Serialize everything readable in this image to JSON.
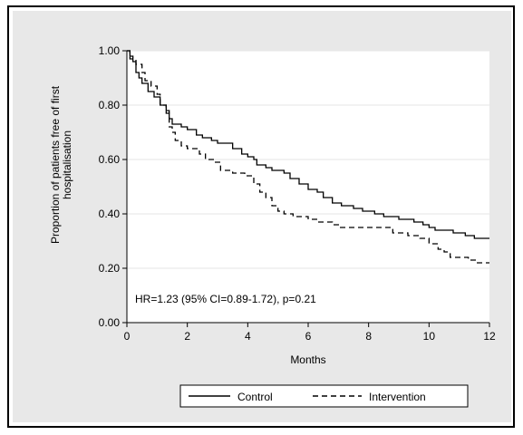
{
  "chart_data": {
    "type": "line",
    "title": "",
    "xlabel": "Months",
    "ylabel_line1": "Proportion of patients free of first",
    "ylabel_line2": "hospitalisation",
    "xlim": [
      0,
      12
    ],
    "ylim": [
      0,
      1
    ],
    "xticks": [
      "0",
      "2",
      "4",
      "6",
      "8",
      "10",
      "12"
    ],
    "yticks": [
      "0.00",
      "0.20",
      "0.40",
      "0.60",
      "0.80",
      "1.00"
    ],
    "grid": true,
    "legend_position": "bottom",
    "annotation": "HR=1.23 (95% CI=0.89-1.72), p=0.21",
    "series": [
      {
        "name": "Control",
        "style": "solid",
        "points": [
          [
            0,
            1.0
          ],
          [
            0.1,
            0.98
          ],
          [
            0.2,
            0.96
          ],
          [
            0.3,
            0.92
          ],
          [
            0.4,
            0.9
          ],
          [
            0.5,
            0.88
          ],
          [
            0.7,
            0.85
          ],
          [
            0.9,
            0.83
          ],
          [
            1.1,
            0.8
          ],
          [
            1.3,
            0.78
          ],
          [
            1.4,
            0.75
          ],
          [
            1.5,
            0.73
          ],
          [
            1.8,
            0.72
          ],
          [
            2.0,
            0.71
          ],
          [
            2.3,
            0.69
          ],
          [
            2.5,
            0.68
          ],
          [
            2.8,
            0.67
          ],
          [
            3.0,
            0.66
          ],
          [
            3.5,
            0.64
          ],
          [
            3.8,
            0.62
          ],
          [
            4.0,
            0.61
          ],
          [
            4.2,
            0.6
          ],
          [
            4.3,
            0.58
          ],
          [
            4.6,
            0.57
          ],
          [
            4.8,
            0.56
          ],
          [
            5.0,
            0.56
          ],
          [
            5.2,
            0.55
          ],
          [
            5.4,
            0.53
          ],
          [
            5.7,
            0.51
          ],
          [
            6.0,
            0.49
          ],
          [
            6.3,
            0.48
          ],
          [
            6.5,
            0.46
          ],
          [
            6.8,
            0.44
          ],
          [
            7.1,
            0.43
          ],
          [
            7.5,
            0.42
          ],
          [
            7.8,
            0.41
          ],
          [
            8.2,
            0.4
          ],
          [
            8.5,
            0.39
          ],
          [
            9.0,
            0.38
          ],
          [
            9.5,
            0.37
          ],
          [
            9.8,
            0.36
          ],
          [
            10.0,
            0.35
          ],
          [
            10.2,
            0.34
          ],
          [
            10.8,
            0.33
          ],
          [
            11.2,
            0.32
          ],
          [
            11.5,
            0.31
          ],
          [
            12.0,
            0.31
          ]
        ]
      },
      {
        "name": "Intervention",
        "style": "dashed",
        "points": [
          [
            0,
            1.0
          ],
          [
            0.1,
            0.97
          ],
          [
            0.3,
            0.95
          ],
          [
            0.5,
            0.92
          ],
          [
            0.6,
            0.89
          ],
          [
            0.8,
            0.87
          ],
          [
            1.0,
            0.84
          ],
          [
            1.1,
            0.8
          ],
          [
            1.3,
            0.77
          ],
          [
            1.4,
            0.72
          ],
          [
            1.5,
            0.7
          ],
          [
            1.6,
            0.67
          ],
          [
            1.8,
            0.65
          ],
          [
            2.0,
            0.64
          ],
          [
            2.4,
            0.62
          ],
          [
            2.6,
            0.6
          ],
          [
            2.9,
            0.59
          ],
          [
            3.1,
            0.56
          ],
          [
            3.5,
            0.55
          ],
          [
            3.9,
            0.54
          ],
          [
            4.2,
            0.51
          ],
          [
            4.4,
            0.48
          ],
          [
            4.6,
            0.46
          ],
          [
            4.8,
            0.43
          ],
          [
            5.0,
            0.41
          ],
          [
            5.2,
            0.4
          ],
          [
            5.5,
            0.39
          ],
          [
            6.0,
            0.38
          ],
          [
            6.3,
            0.37
          ],
          [
            6.8,
            0.36
          ],
          [
            7.0,
            0.35
          ],
          [
            7.5,
            0.35
          ],
          [
            8.5,
            0.35
          ],
          [
            8.8,
            0.33
          ],
          [
            9.3,
            0.32
          ],
          [
            9.7,
            0.31
          ],
          [
            10.0,
            0.29
          ],
          [
            10.3,
            0.27
          ],
          [
            10.5,
            0.26
          ],
          [
            10.7,
            0.24
          ],
          [
            11.0,
            0.24
          ],
          [
            11.3,
            0.23
          ],
          [
            11.6,
            0.22
          ],
          [
            12.0,
            0.22
          ]
        ]
      }
    ]
  }
}
